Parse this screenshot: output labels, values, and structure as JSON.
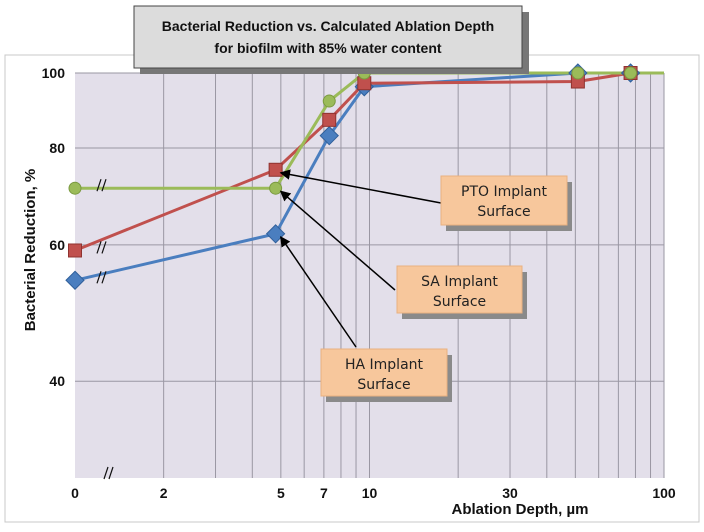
{
  "chart_data": {
    "type": "line",
    "title": [
      "Bacterial Reduction vs. Calculated Ablation Depth",
      "for biofilm with 85% water content"
    ],
    "xlabel": "Ablation Depth, µm",
    "ylabel": "Bacterial Reduction, %",
    "x_scale": "log",
    "y_scale": "log",
    "xlim": [
      1,
      100
    ],
    "ylim": [
      30,
      100
    ],
    "x_ticks": [
      {
        "value": 1,
        "label": "0"
      },
      {
        "value": 2,
        "label": "2"
      },
      {
        "value": 5,
        "label": "5"
      },
      {
        "value": 7,
        "label": "7"
      },
      {
        "value": 10,
        "label": "10"
      },
      {
        "value": 30,
        "label": "30"
      },
      {
        "value": 100,
        "label": "100"
      }
    ],
    "y_ticks": [
      {
        "value": 40,
        "label": "40"
      },
      {
        "value": 60,
        "label": "60"
      },
      {
        "value": 80,
        "label": "80"
      },
      {
        "value": 100,
        "label": "100"
      }
    ],
    "grid": true,
    "axis_break": "x-axis break between 0 and 2",
    "series": [
      {
        "name": "HA Implant Surface",
        "color": "#4a7ebf",
        "marker": "diamond",
        "x": [
          1,
          4.8,
          7.3,
          9.6,
          51,
          77
        ],
        "y": [
          54,
          62,
          83,
          96,
          100,
          100
        ]
      },
      {
        "name": "PTO Implant Surface",
        "color": "#c0504d",
        "marker": "square",
        "x": [
          1,
          4.8,
          7.3,
          9.6,
          51,
          77
        ],
        "y": [
          59,
          75,
          87,
          97,
          97.5,
          100
        ]
      },
      {
        "name": "SA Implant Surface",
        "color": "#9bbb59",
        "marker": "circle",
        "x": [
          1,
          4.8,
          7.3,
          9.6,
          51,
          77,
          100
        ],
        "y": [
          71,
          71,
          92,
          100,
          100,
          100,
          100
        ]
      }
    ],
    "annotations": [
      {
        "line1": "PTO Implant",
        "line2": "Surface",
        "points_to_series": 1
      },
      {
        "line1": "SA Implant",
        "line2": "Surface",
        "points_to_series": 2
      },
      {
        "line1": "HA Implant",
        "line2": "Surface",
        "points_to_series": 0
      }
    ]
  }
}
